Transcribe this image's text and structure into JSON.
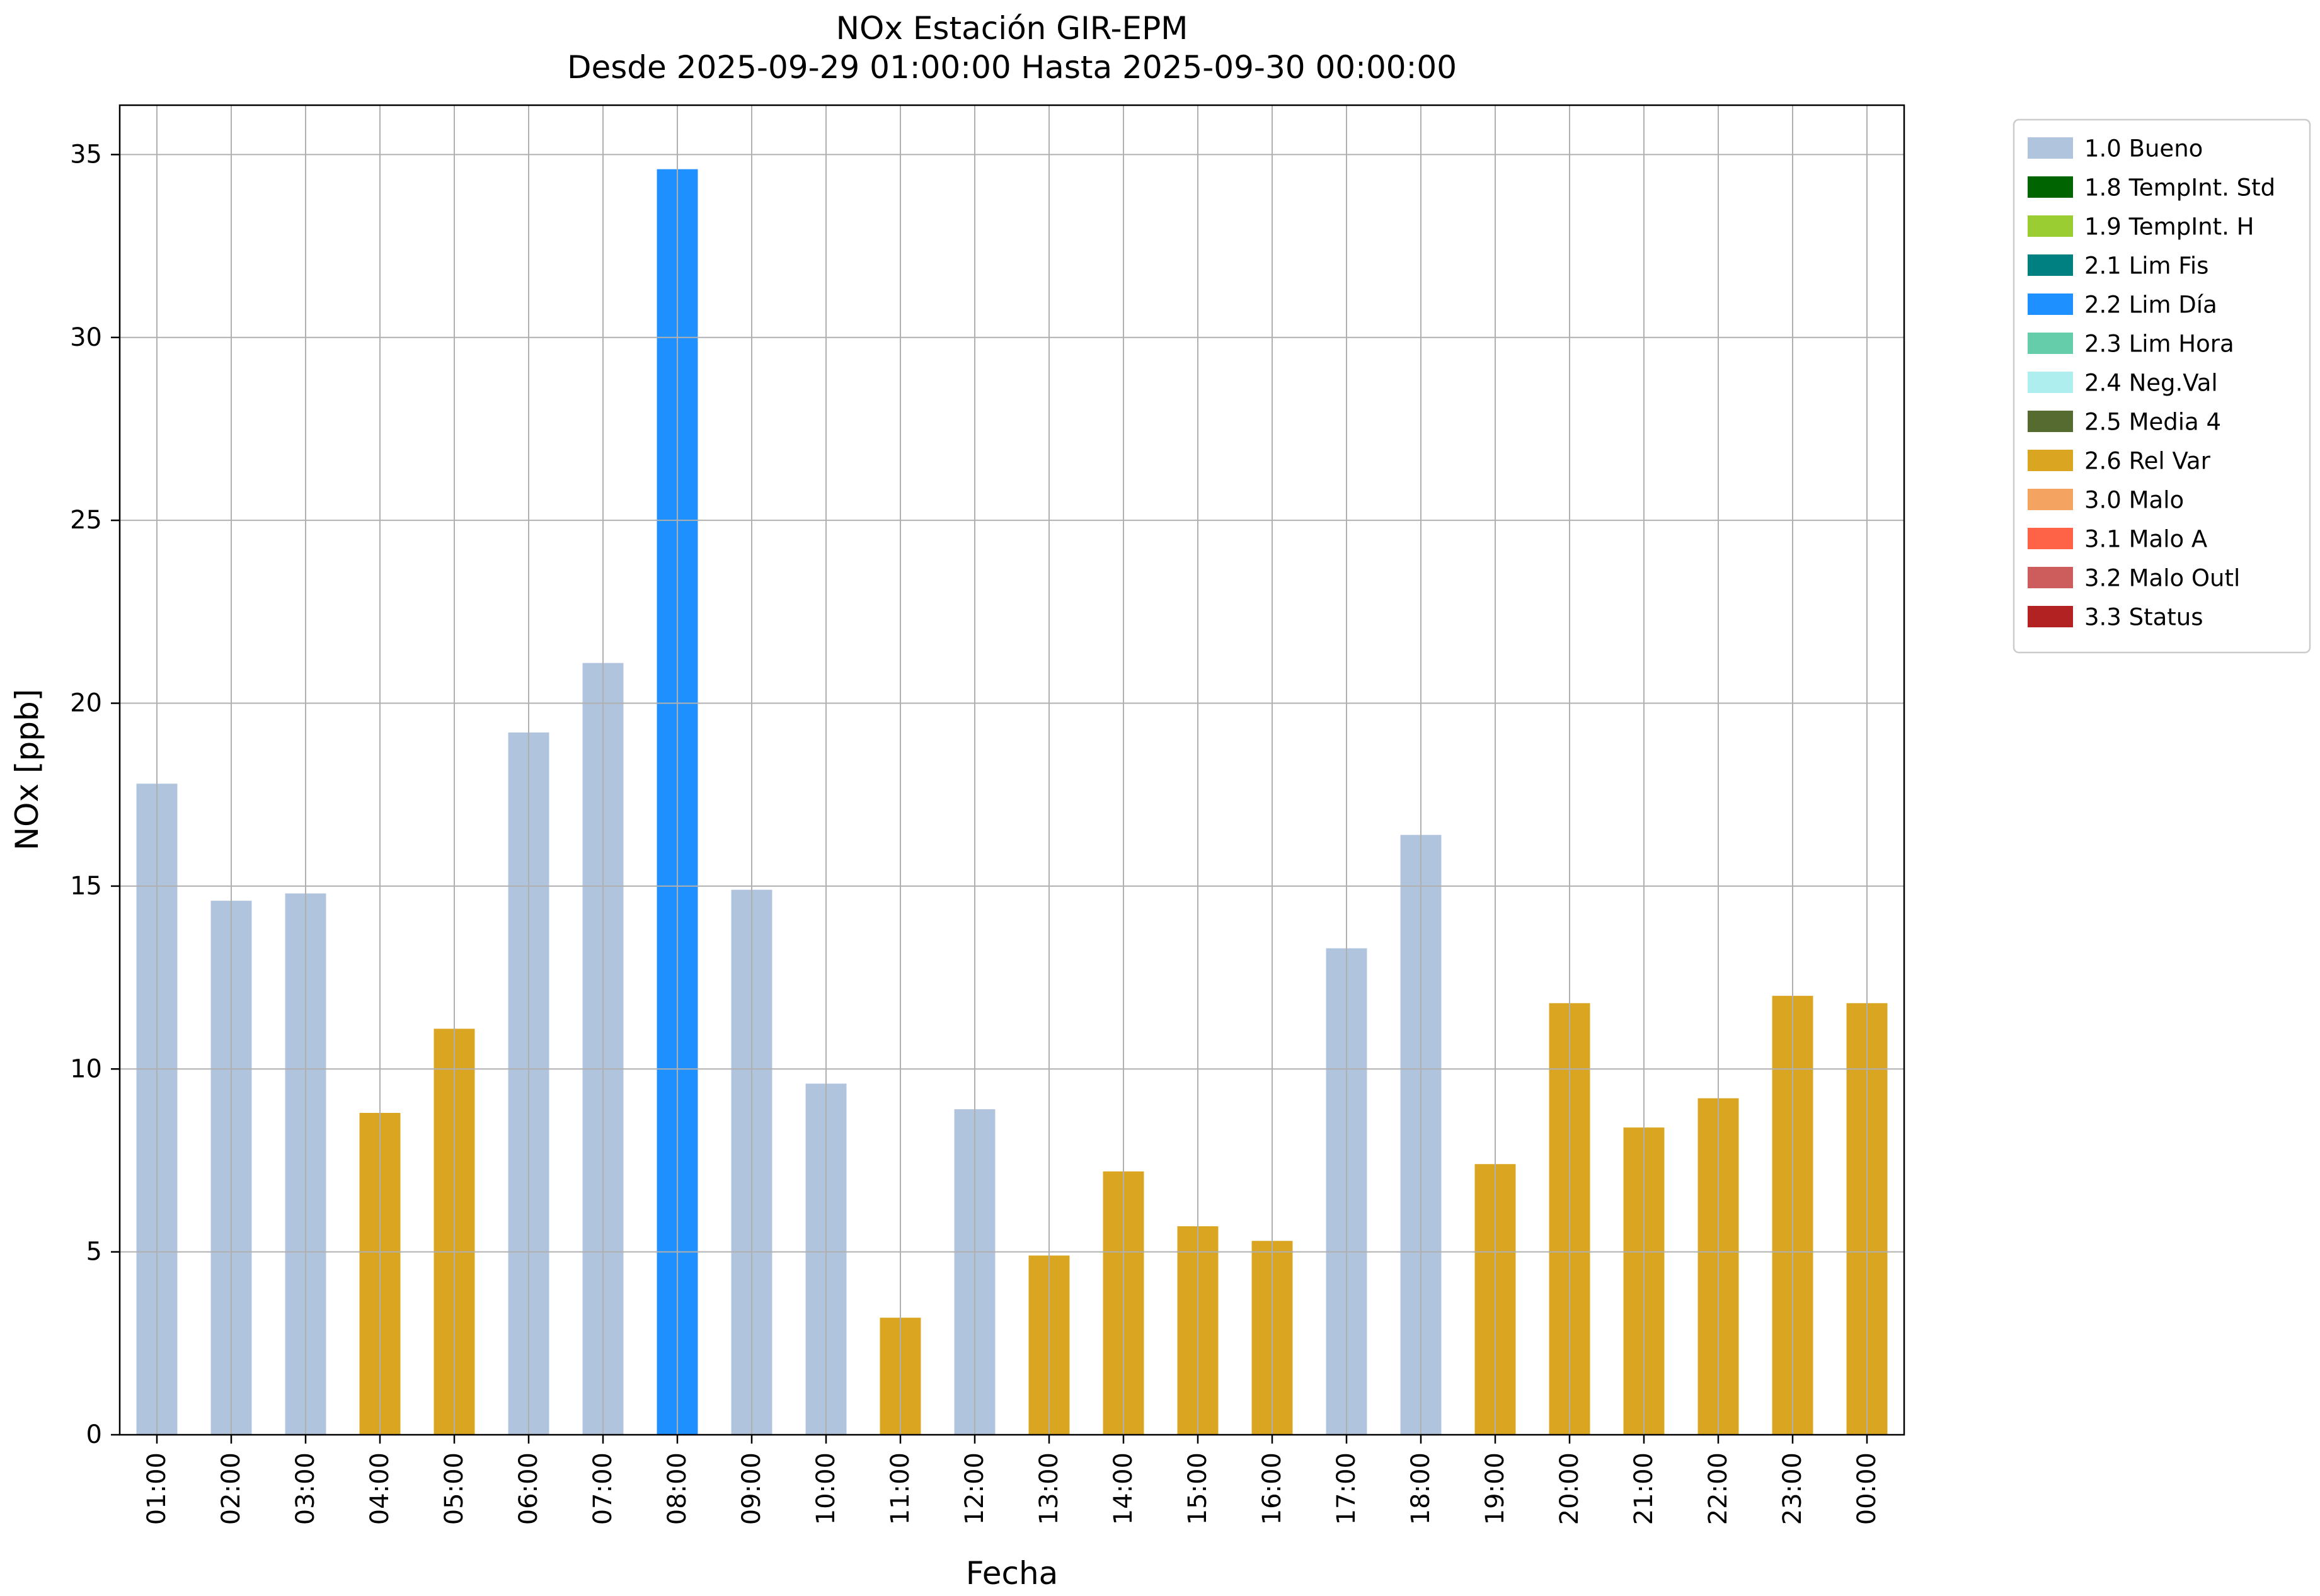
{
  "chart_data": {
    "type": "bar",
    "title": "NOx Estación GIR-EPM",
    "subtitle": "Desde 2025-09-29 01:00:00 Hasta 2025-09-30 00:00:00",
    "xlabel": "Fecha",
    "ylabel": "NOx [ppb]",
    "ylim": [
      0,
      36.35
    ],
    "yticks": [
      0,
      5,
      10,
      15,
      20,
      25,
      30,
      35
    ],
    "grid": true,
    "legend_position": "outside upper right",
    "categories": [
      "01:00",
      "02:00",
      "03:00",
      "04:00",
      "05:00",
      "06:00",
      "07:00",
      "08:00",
      "09:00",
      "10:00",
      "11:00",
      "12:00",
      "13:00",
      "14:00",
      "15:00",
      "16:00",
      "17:00",
      "18:00",
      "19:00",
      "20:00",
      "21:00",
      "22:00",
      "23:00",
      "00:00"
    ],
    "series": [
      {
        "name": "NOx",
        "values": [
          17.8,
          14.6,
          14.8,
          8.8,
          11.1,
          19.2,
          21.1,
          34.6,
          14.9,
          9.6,
          3.2,
          8.9,
          4.9,
          7.2,
          5.7,
          5.3,
          13.3,
          16.4,
          7.4,
          11.8,
          8.4,
          9.2,
          12.0,
          11.8
        ]
      }
    ],
    "point_flags": [
      "1.0 Bueno",
      "1.0 Bueno",
      "1.0 Bueno",
      "2.6 Rel Var",
      "2.6 Rel Var",
      "1.0 Bueno",
      "1.0 Bueno",
      "2.2 Lim Día",
      "1.0 Bueno",
      "1.0 Bueno",
      "2.6 Rel Var",
      "1.0 Bueno",
      "2.6 Rel Var",
      "2.6 Rel Var",
      "2.6 Rel Var",
      "2.6 Rel Var",
      "1.0 Bueno",
      "1.0 Bueno",
      "2.6 Rel Var",
      "2.6 Rel Var",
      "2.6 Rel Var",
      "2.6 Rel Var",
      "2.6 Rel Var",
      "2.6 Rel Var"
    ],
    "legend": [
      {
        "label": "1.0 Bueno",
        "color": "#B0C4DE"
      },
      {
        "label": "1.8 TempInt. Std",
        "color": "#006400"
      },
      {
        "label": "1.9 TempInt. H",
        "color": "#9ACD32"
      },
      {
        "label": "2.1 Lim Fis",
        "color": "#008080"
      },
      {
        "label": "2.2 Lim Día",
        "color": "#1E90FF"
      },
      {
        "label": "2.3 Lim Hora",
        "color": "#66CDAA"
      },
      {
        "label": "2.4 Neg.Val",
        "color": "#AFEEEE"
      },
      {
        "label": "2.5 Media 4",
        "color": "#556B2F"
      },
      {
        "label": "2.6 Rel Var",
        "color": "#DAA520"
      },
      {
        "label": "3.0 Malo",
        "color": "#F4A460"
      },
      {
        "label": "3.1 Malo A",
        "color": "#FF6347"
      },
      {
        "label": "3.2 Malo Outl",
        "color": "#CD5C5C"
      },
      {
        "label": "3.3 Status",
        "color": "#B22222"
      }
    ],
    "style": {
      "grid_color": "#b0b0b0",
      "frame_color": "#000000",
      "background": "#ffffff"
    }
  }
}
